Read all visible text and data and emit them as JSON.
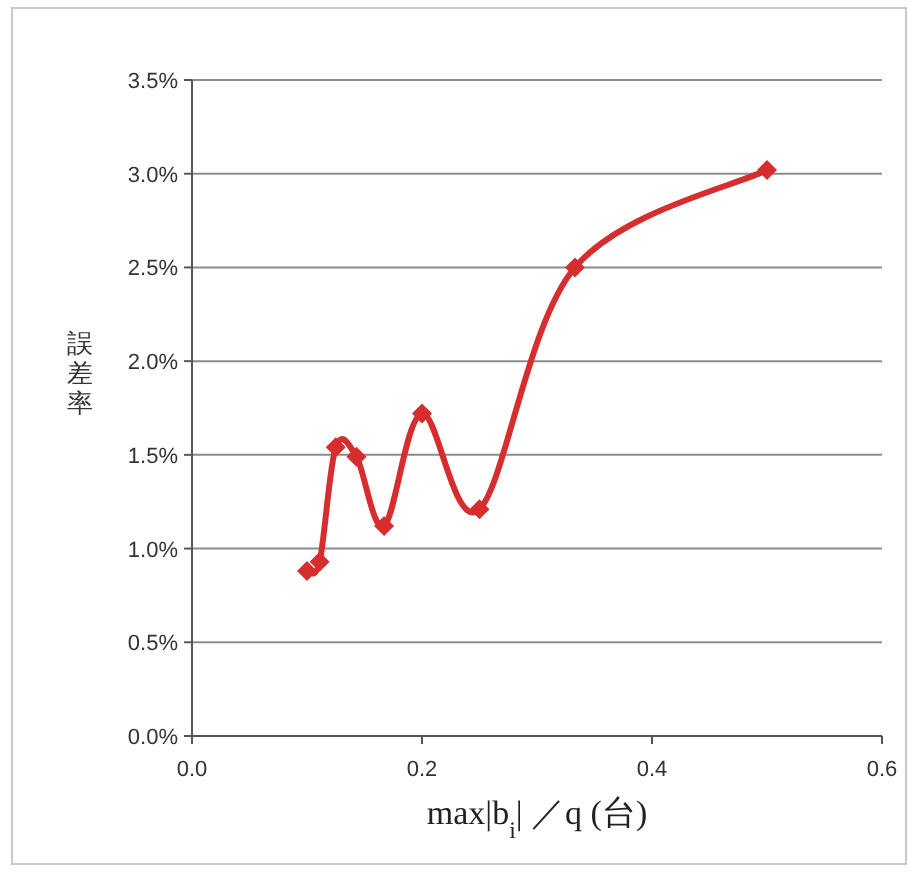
{
  "chart_data": {
    "type": "line",
    "xlabel": "max|b$_{i}$| ／q (台)",
    "ylabel": "誤差率",
    "x": [
      0.1,
      0.111,
      0.125,
      0.143,
      0.167,
      0.2,
      0.25,
      0.333,
      0.5
    ],
    "series": [
      {
        "color": "#d62e2e",
        "values": [
          0.88,
          0.93,
          1.54,
          1.49,
          1.12,
          1.72,
          1.21,
          2.5,
          3.02
        ]
      }
    ],
    "xlim": [
      0,
      0.6
    ],
    "xticks": [
      {
        "value": 0,
        "label": "0.0"
      },
      0.2,
      0.4,
      0.6
    ],
    "ylim": [
      0,
      3.5
    ],
    "yticks": [
      {
        "value": 0,
        "label": "0.0%"
      },
      {
        "value": 0.5,
        "label": "0.5%"
      },
      {
        "value": 1,
        "label": "1.0%"
      },
      {
        "value": 1.5,
        "label": "1.5%"
      },
      {
        "value": 2,
        "label": "2.0%"
      },
      {
        "value": 2.5,
        "label": "2.5%"
      },
      {
        "value": 3,
        "label": "3.0%"
      },
      {
        "value": 3.5,
        "label": "3.5%"
      }
    ],
    "grid": "y",
    "marker": "diamond",
    "line_style": "solid"
  }
}
